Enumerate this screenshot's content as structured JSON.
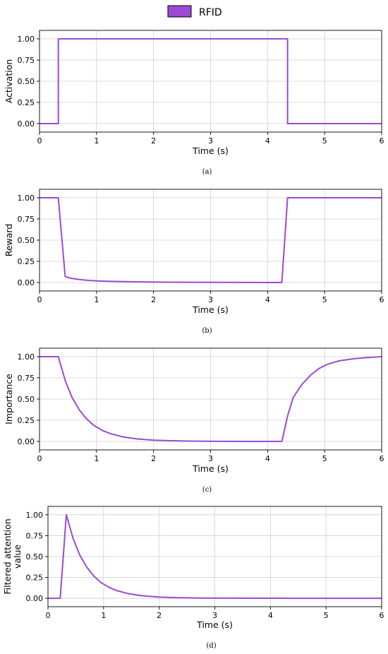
{
  "legend": {
    "label": "RFID",
    "color": "#9b4ad6"
  },
  "chart_data": [
    {
      "type": "line",
      "caption": "(a)",
      "xlabel": "Time (s)",
      "ylabel": "Activation",
      "xlim": [
        0,
        6
      ],
      "ylim": [
        -0.1,
        1.1
      ],
      "xticks": [
        0,
        1,
        2,
        3,
        4,
        5,
        6
      ],
      "yticks": [
        "0.00",
        "0.25",
        "0.50",
        "0.75",
        "1.00"
      ],
      "grid": true,
      "series": [
        {
          "name": "RFID",
          "x": [
            0,
            0.33,
            0.33,
            4.35,
            4.35,
            6
          ],
          "y": [
            0,
            0,
            1,
            1,
            0,
            0
          ]
        }
      ]
    },
    {
      "type": "line",
      "caption": "(b)",
      "xlabel": "Time (s)",
      "ylabel": "Reward",
      "xlim": [
        0,
        6
      ],
      "ylim": [
        -0.1,
        1.1
      ],
      "xticks": [
        0,
        1,
        2,
        3,
        4,
        5,
        6
      ],
      "yticks": [
        "0.00",
        "0.25",
        "0.50",
        "0.75",
        "1.00"
      ],
      "grid": true,
      "series": [
        {
          "name": "RFID",
          "x": [
            0,
            0.33,
            0.45,
            0.55,
            0.7,
            0.85,
            1.0,
            1.2,
            1.5,
            2.0,
            2.5,
            3.0,
            3.5,
            4.0,
            4.25,
            4.35,
            4.5,
            5.0,
            6.0
          ],
          "y": [
            1.0,
            1.0,
            0.07,
            0.05,
            0.035,
            0.025,
            0.02,
            0.015,
            0.01,
            0.005,
            0.003,
            0.002,
            0.001,
            0.0005,
            0.0,
            1.0,
            1.0,
            1.0,
            1.0
          ]
        }
      ]
    },
    {
      "type": "line",
      "caption": "(c)",
      "xlabel": "Time (s)",
      "ylabel": "Importance",
      "xlim": [
        0,
        6
      ],
      "ylim": [
        -0.1,
        1.1
      ],
      "xticks": [
        0,
        1,
        2,
        3,
        4,
        5,
        6
      ],
      "yticks": [
        "0.00",
        "0.25",
        "0.50",
        "0.75",
        "1.00"
      ],
      "grid": true,
      "series": [
        {
          "name": "RFID",
          "x": [
            0,
            0.33,
            0.45,
            0.57,
            0.7,
            0.82,
            0.95,
            1.1,
            1.25,
            1.45,
            1.7,
            2.0,
            2.3,
            2.7,
            3.2,
            3.7,
            4.0,
            4.25,
            4.35,
            4.45,
            4.6,
            4.75,
            4.9,
            5.05,
            5.25,
            5.5,
            5.75,
            6.0
          ],
          "y": [
            1.0,
            1.0,
            0.72,
            0.52,
            0.37,
            0.27,
            0.19,
            0.13,
            0.09,
            0.055,
            0.03,
            0.015,
            0.008,
            0.003,
            0.001,
            0.0005,
            0.0003,
            0.0,
            0.3,
            0.52,
            0.67,
            0.78,
            0.86,
            0.91,
            0.95,
            0.975,
            0.99,
            1.0
          ]
        }
      ]
    },
    {
      "type": "line",
      "caption": "(d)",
      "xlabel": "Time (s)",
      "ylabel": "Filtered attention\nvalue",
      "xlim": [
        0,
        6
      ],
      "ylim": [
        -0.1,
        1.1
      ],
      "xticks": [
        0,
        1,
        2,
        3,
        4,
        5,
        6
      ],
      "yticks": [
        "0.00",
        "0.25",
        "0.50",
        "0.75",
        "1.00"
      ],
      "grid": true,
      "series": [
        {
          "name": "RFID",
          "x": [
            0,
            0.22,
            0.33,
            0.45,
            0.57,
            0.7,
            0.82,
            0.95,
            1.1,
            1.25,
            1.45,
            1.7,
            2.0,
            2.3,
            2.7,
            3.2,
            3.7,
            4.25,
            4.35,
            5.0,
            6.0
          ],
          "y": [
            0,
            0,
            1.0,
            0.72,
            0.52,
            0.37,
            0.27,
            0.19,
            0.13,
            0.09,
            0.055,
            0.03,
            0.015,
            0.008,
            0.004,
            0.002,
            0.001,
            0.001,
            0.0,
            0.0,
            0.0
          ]
        }
      ]
    }
  ]
}
